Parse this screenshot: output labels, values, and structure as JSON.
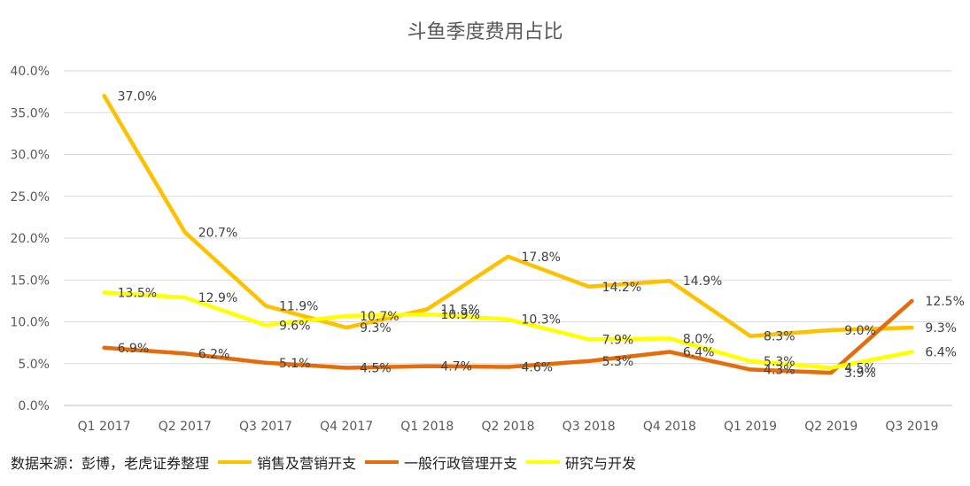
{
  "chart_data": {
    "type": "line",
    "title": "斗鱼季度费用占比",
    "categories": [
      "Q1 2017",
      "Q2 2017",
      "Q3 2017",
      "Q4 2017",
      "Q1 2018",
      "Q2 2018",
      "Q3 2018",
      "Q4 2018",
      "Q1 2019",
      "Q2 2019",
      "Q3 2019"
    ],
    "yticks": [
      "0.0%",
      "5.0%",
      "10.0%",
      "15.0%",
      "20.0%",
      "25.0%",
      "30.0%",
      "35.0%",
      "40.0%"
    ],
    "ylim": [
      0,
      40
    ],
    "grid": true,
    "series": [
      {
        "name": "销售及营销开支",
        "color": "#FFC000",
        "values": [
          37.0,
          20.7,
          11.9,
          9.3,
          11.5,
          17.8,
          14.2,
          14.9,
          8.3,
          9.0,
          9.3
        ],
        "labels": [
          "37.0%",
          "20.7%",
          "11.9%",
          "9.3%",
          "11.5%",
          "17.8%",
          "14.2%",
          "14.9%",
          "8.3%",
          "9.0%",
          "9.3%"
        ]
      },
      {
        "name": "一般行政管理开支",
        "color": "#E46C0A",
        "values": [
          6.9,
          6.2,
          5.1,
          4.5,
          4.7,
          4.6,
          5.3,
          6.4,
          4.3,
          3.9,
          12.5
        ],
        "labels": [
          "6.9%",
          "6.2%",
          "5.1%",
          "4.5%",
          "4.7%",
          "4.6%",
          "5.3%",
          "6.4%",
          "4.3%",
          "3.9%",
          "12.5%"
        ]
      },
      {
        "name": "研究与开发",
        "color": "#FFFF00",
        "values": [
          13.5,
          12.9,
          9.6,
          10.7,
          10.9,
          10.3,
          7.9,
          8.0,
          5.3,
          4.5,
          6.4
        ],
        "labels": [
          "13.5%",
          "12.9%",
          "9.6%",
          "10.7%",
          "10.9%",
          "10.3%",
          "7.9%",
          "8.0%",
          "5.3%",
          "4.5%",
          "6.4%"
        ]
      }
    ]
  },
  "footer": {
    "source": "数据来源：彭博，老虎证券整理"
  }
}
